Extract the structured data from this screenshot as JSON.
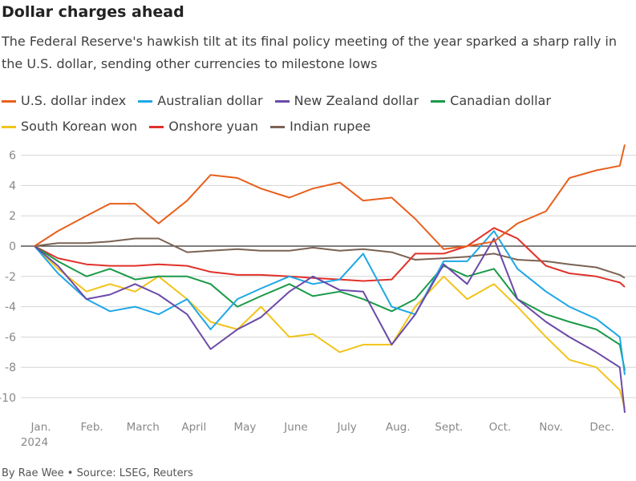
{
  "title": "Dollar charges ahead",
  "subtitle": "The Federal Reserve's hawkish tilt at its final policy meeting of the year sparked a sharp rally in the U.S. dollar, sending other currencies to milestone lows",
  "footer": "By Rae Wee • Source: LSEG, Reuters",
  "chart_data": {
    "type": "line",
    "ylim": [
      -11,
      6.8
    ],
    "yticks": [
      "6",
      "4",
      "2",
      "0",
      "-2",
      "-4",
      "-6",
      "-8",
      "-10"
    ],
    "ytick_values": [
      6,
      4,
      2,
      0,
      -2,
      -4,
      -6,
      -8,
      -10
    ],
    "xticks": [
      "Jan.",
      "Feb.",
      "March",
      "April",
      "May",
      "June",
      "July",
      "Aug.",
      "Sept.",
      "Oct.",
      "Nov.",
      "Dec."
    ],
    "xtick_year": "2024",
    "grid": true,
    "legend_position": "top",
    "x": [
      "2024-01-01",
      "2024-01-15",
      "2024-02-01",
      "2024-02-15",
      "2024-03-01",
      "2024-03-15",
      "2024-04-01",
      "2024-04-15",
      "2024-05-01",
      "2024-05-15",
      "2024-06-01",
      "2024-06-15",
      "2024-07-01",
      "2024-07-15",
      "2024-08-01",
      "2024-08-15",
      "2024-09-01",
      "2024-09-15",
      "2024-10-01",
      "2024-10-15",
      "2024-11-01",
      "2024-11-15",
      "2024-12-01",
      "2024-12-15",
      "2024-12-18"
    ],
    "series": [
      {
        "name": "U.S. dollar index",
        "color": "#e8601c",
        "values": [
          0,
          1.0,
          2.0,
          2.8,
          2.8,
          1.5,
          3.0,
          4.7,
          4.5,
          3.8,
          3.2,
          3.8,
          4.2,
          3.0,
          3.2,
          1.8,
          -0.2,
          0.0,
          0.3,
          1.5,
          2.3,
          4.5,
          5.0,
          5.3,
          6.7
        ]
      },
      {
        "name": "Australian dollar",
        "color": "#1ea7e6",
        "values": [
          0,
          -1.8,
          -3.5,
          -4.3,
          -4.0,
          -4.5,
          -3.5,
          -5.5,
          -3.5,
          -2.8,
          -2.0,
          -2.5,
          -2.2,
          -0.5,
          -4.0,
          -4.5,
          -1.0,
          -1.0,
          1.0,
          -1.5,
          -3.0,
          -4.0,
          -4.8,
          -6.0,
          -8.5
        ]
      },
      {
        "name": "New Zealand dollar",
        "color": "#6a4aa8",
        "values": [
          0,
          -1.3,
          -3.5,
          -3.2,
          -2.5,
          -3.2,
          -4.5,
          -6.8,
          -5.5,
          -4.7,
          -3.0,
          -2.0,
          -2.9,
          -3.0,
          -6.5,
          -4.5,
          -1.2,
          -2.5,
          0.5,
          -3.5,
          -5.0,
          -6.0,
          -7.0,
          -8.0,
          -11.0
        ]
      },
      {
        "name": "Canadian dollar",
        "color": "#1a9a48",
        "values": [
          0,
          -1.0,
          -2.0,
          -1.5,
          -2.2,
          -2.0,
          -2.0,
          -2.5,
          -4.0,
          -3.3,
          -2.5,
          -3.3,
          -3.0,
          -3.5,
          -4.3,
          -3.5,
          -1.3,
          -2.0,
          -1.5,
          -3.5,
          -4.5,
          -5.0,
          -5.5,
          -6.5,
          -8.2
        ]
      },
      {
        "name": "South Korean won",
        "color": "#f2c31a",
        "values": [
          0,
          -1.5,
          -3.0,
          -2.5,
          -3.0,
          -2.0,
          -3.5,
          -5.0,
          -5.5,
          -4.0,
          -6.0,
          -5.8,
          -7.0,
          -6.5,
          -6.5,
          -4.0,
          -2.0,
          -3.5,
          -2.5,
          -4.0,
          -6.0,
          -7.5,
          -8.0,
          -9.5,
          -10.7
        ]
      },
      {
        "name": "Onshore yuan",
        "color": "#e0312a",
        "values": [
          0,
          -0.8,
          -1.2,
          -1.3,
          -1.3,
          -1.2,
          -1.3,
          -1.7,
          -1.9,
          -1.9,
          -2.0,
          -2.1,
          -2.2,
          -2.3,
          -2.2,
          -0.5,
          -0.5,
          0.0,
          1.2,
          0.5,
          -1.3,
          -1.8,
          -2.0,
          -2.4,
          -2.7
        ]
      },
      {
        "name": "Indian rupee",
        "color": "#7b6354",
        "values": [
          0,
          0.2,
          0.2,
          0.3,
          0.5,
          0.5,
          -0.4,
          -0.3,
          -0.2,
          -0.3,
          -0.3,
          -0.1,
          -0.3,
          -0.2,
          -0.4,
          -0.9,
          -0.8,
          -0.7,
          -0.5,
          -0.9,
          -1.0,
          -1.2,
          -1.4,
          -1.9,
          -2.1
        ]
      }
    ]
  }
}
